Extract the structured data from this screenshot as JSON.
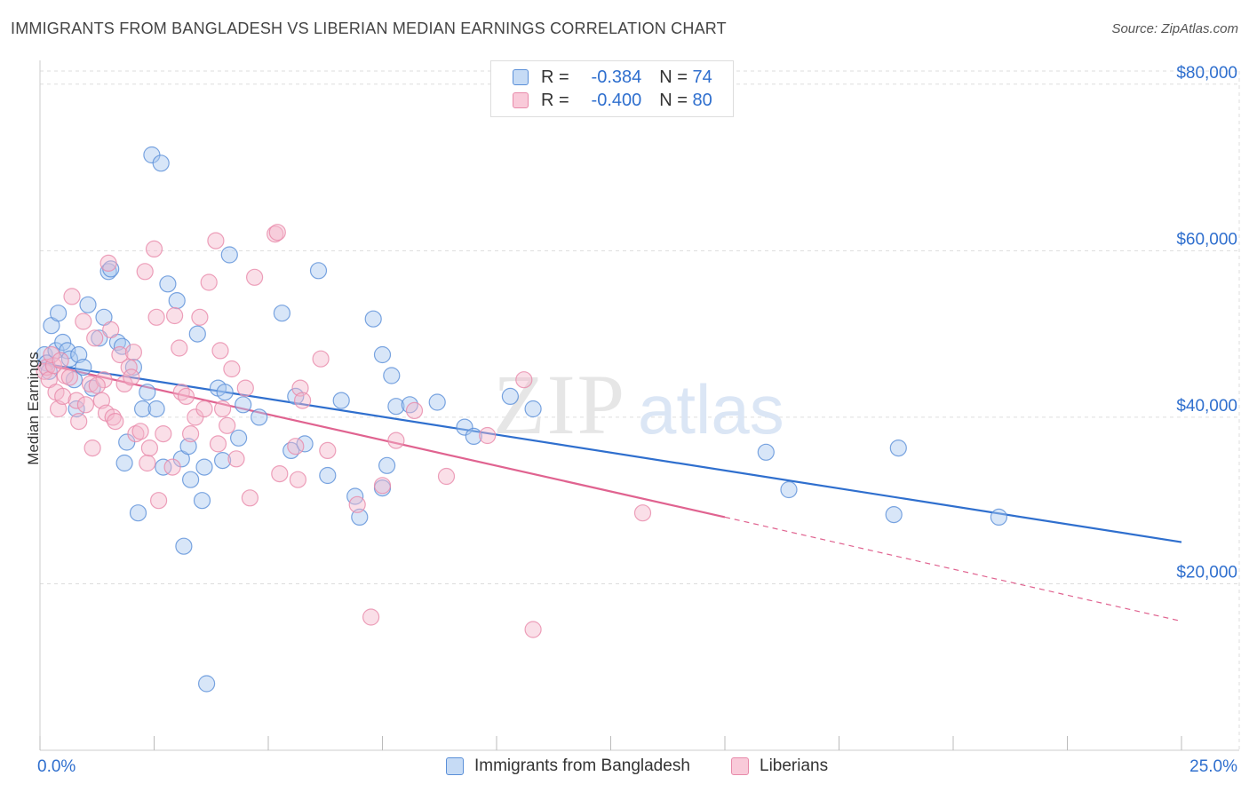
{
  "header": {
    "title": "IMMIGRANTS FROM BANGLADESH VS LIBERIAN MEDIAN EARNINGS CORRELATION CHART",
    "source": "Source: ZipAtlas.com"
  },
  "watermark": {
    "zip": "ZIP",
    "atlas": "atlas"
  },
  "legend": {
    "rows": [
      {
        "r_label": "R =",
        "r_value": "-0.384",
        "n_label": "N =",
        "n_value": "74"
      },
      {
        "r_label": "R =",
        "r_value": "-0.400",
        "n_label": "N =",
        "n_value": "80"
      }
    ]
  },
  "colors": {
    "blue": "#2f6fce",
    "blue_fill": "#a9c8ef",
    "pink": "#e06390",
    "pink_fill": "#f5b8cc",
    "grid": "#dddddd",
    "axis_text": "#2f6fce"
  },
  "chart_data": {
    "type": "scatter",
    "title": "IMMIGRANTS FROM BANGLADESH VS LIBERIAN MEDIAN EARNINGS CORRELATION CHART",
    "xlabel": "",
    "ylabel": "Median Earnings",
    "xlim": [
      0,
      25
    ],
    "ylim": [
      0,
      82000
    ],
    "x_tick_labels": [
      "0.0%",
      "25.0%"
    ],
    "y_ticks": [
      20000,
      40000,
      60000,
      80000
    ],
    "y_tick_labels": [
      "$20,000",
      "$40,000",
      "$60,000",
      "$80,000"
    ],
    "grid": true,
    "legend_position": "top-center",
    "series": [
      {
        "name": "Immigrants from Bangladesh",
        "color": "#2f6fce",
        "trend": {
          "x": [
            0,
            25
          ],
          "y": [
            46500,
            25000
          ],
          "dashed_from": null
        },
        "points": [
          [
            0.1,
            47500
          ],
          [
            0.15,
            46500
          ],
          [
            0.2,
            45500
          ],
          [
            0.25,
            51000
          ],
          [
            0.35,
            48000
          ],
          [
            0.4,
            52500
          ],
          [
            0.5,
            49000
          ],
          [
            0.6,
            48000
          ],
          [
            0.65,
            47000
          ],
          [
            0.75,
            44500
          ],
          [
            0.8,
            41000
          ],
          [
            0.85,
            47500
          ],
          [
            0.95,
            46000
          ],
          [
            1.05,
            53500
          ],
          [
            1.15,
            43500
          ],
          [
            1.3,
            49500
          ],
          [
            1.4,
            52000
          ],
          [
            1.5,
            57500
          ],
          [
            1.55,
            57800
          ],
          [
            1.7,
            49000
          ],
          [
            1.8,
            48500
          ],
          [
            1.85,
            34500
          ],
          [
            1.9,
            37000
          ],
          [
            2.05,
            46000
          ],
          [
            2.15,
            28500
          ],
          [
            2.25,
            41000
          ],
          [
            2.35,
            43000
          ],
          [
            2.45,
            71500
          ],
          [
            2.55,
            41000
          ],
          [
            2.65,
            70500
          ],
          [
            2.7,
            34000
          ],
          [
            2.8,
            56000
          ],
          [
            3.0,
            54000
          ],
          [
            3.1,
            35000
          ],
          [
            3.15,
            24500
          ],
          [
            3.25,
            36500
          ],
          [
            3.3,
            32500
          ],
          [
            3.45,
            50000
          ],
          [
            3.55,
            30000
          ],
          [
            3.6,
            34000
          ],
          [
            3.65,
            8000
          ],
          [
            3.9,
            43500
          ],
          [
            4.0,
            34800
          ],
          [
            4.05,
            43000
          ],
          [
            4.15,
            59500
          ],
          [
            4.35,
            37500
          ],
          [
            4.45,
            41500
          ],
          [
            4.8,
            40000
          ],
          [
            5.3,
            52500
          ],
          [
            5.6,
            42500
          ],
          [
            5.5,
            36000
          ],
          [
            5.8,
            36800
          ],
          [
            6.1,
            57600
          ],
          [
            6.3,
            33000
          ],
          [
            6.6,
            42000
          ],
          [
            6.9,
            30500
          ],
          [
            7.0,
            28000
          ],
          [
            7.3,
            51800
          ],
          [
            7.5,
            47500
          ],
          [
            7.6,
            34200
          ],
          [
            7.7,
            45000
          ],
          [
            7.8,
            41300
          ],
          [
            7.5,
            31500
          ],
          [
            8.1,
            41500
          ],
          [
            8.7,
            41800
          ],
          [
            9.3,
            38800
          ],
          [
            9.5,
            37700
          ],
          [
            10.3,
            42500
          ],
          [
            10.8,
            41000
          ],
          [
            15.9,
            35800
          ],
          [
            16.4,
            31300
          ],
          [
            18.7,
            28300
          ],
          [
            18.8,
            36300
          ],
          [
            21.0,
            28000
          ]
        ]
      },
      {
        "name": "Liberians",
        "color": "#e06390",
        "trend": {
          "x": [
            0,
            15
          ],
          "y": [
            46500,
            28000
          ],
          "dashed_to": [
            25,
            15500
          ]
        },
        "points": [
          [
            0.1,
            45500
          ],
          [
            0.15,
            46000
          ],
          [
            0.2,
            44500
          ],
          [
            0.3,
            46200
          ],
          [
            0.35,
            43000
          ],
          [
            0.4,
            41000
          ],
          [
            0.5,
            42500
          ],
          [
            0.55,
            45000
          ],
          [
            0.65,
            44800
          ],
          [
            0.7,
            54500
          ],
          [
            0.8,
            42000
          ],
          [
            0.85,
            39500
          ],
          [
            0.95,
            51500
          ],
          [
            1.0,
            41500
          ],
          [
            1.1,
            44000
          ],
          [
            1.15,
            36300
          ],
          [
            1.2,
            49500
          ],
          [
            1.35,
            42000
          ],
          [
            1.4,
            44500
          ],
          [
            1.45,
            40500
          ],
          [
            1.5,
            58500
          ],
          [
            1.55,
            50500
          ],
          [
            1.6,
            40000
          ],
          [
            1.65,
            39500
          ],
          [
            1.75,
            47500
          ],
          [
            1.85,
            44000
          ],
          [
            1.95,
            46000
          ],
          [
            2.05,
            47800
          ],
          [
            2.1,
            38000
          ],
          [
            2.2,
            38300
          ],
          [
            2.3,
            57500
          ],
          [
            2.35,
            34500
          ],
          [
            2.4,
            36300
          ],
          [
            2.5,
            60200
          ],
          [
            2.55,
            52000
          ],
          [
            2.6,
            30000
          ],
          [
            2.7,
            38000
          ],
          [
            2.9,
            34000
          ],
          [
            2.95,
            52200
          ],
          [
            3.05,
            48300
          ],
          [
            3.1,
            43000
          ],
          [
            3.2,
            42500
          ],
          [
            3.3,
            38000
          ],
          [
            3.4,
            40000
          ],
          [
            3.5,
            52000
          ],
          [
            3.6,
            41000
          ],
          [
            3.7,
            56200
          ],
          [
            3.85,
            61200
          ],
          [
            3.9,
            36800
          ],
          [
            3.95,
            48000
          ],
          [
            4.0,
            41000
          ],
          [
            4.1,
            39000
          ],
          [
            4.2,
            45800
          ],
          [
            4.3,
            35000
          ],
          [
            4.5,
            43500
          ],
          [
            4.6,
            30300
          ],
          [
            4.7,
            56800
          ],
          [
            5.15,
            62000
          ],
          [
            5.2,
            62200
          ],
          [
            5.25,
            33200
          ],
          [
            5.6,
            36500
          ],
          [
            5.65,
            32500
          ],
          [
            5.7,
            43500
          ],
          [
            5.75,
            42000
          ],
          [
            6.15,
            47000
          ],
          [
            6.3,
            36000
          ],
          [
            6.95,
            29500
          ],
          [
            7.25,
            16000
          ],
          [
            7.5,
            31800
          ],
          [
            7.8,
            37200
          ],
          [
            8.2,
            40800
          ],
          [
            8.9,
            32900
          ],
          [
            9.8,
            37800
          ],
          [
            10.6,
            44500
          ],
          [
            13.2,
            28500
          ],
          [
            0.25,
            47500
          ],
          [
            0.45,
            46800
          ],
          [
            1.25,
            43800
          ],
          [
            2.0,
            44800
          ],
          [
            10.8,
            14500
          ]
        ]
      }
    ]
  },
  "bottom_legend": {
    "items": [
      {
        "label": "Immigrants from Bangladesh"
      },
      {
        "label": "Liberians"
      }
    ]
  }
}
